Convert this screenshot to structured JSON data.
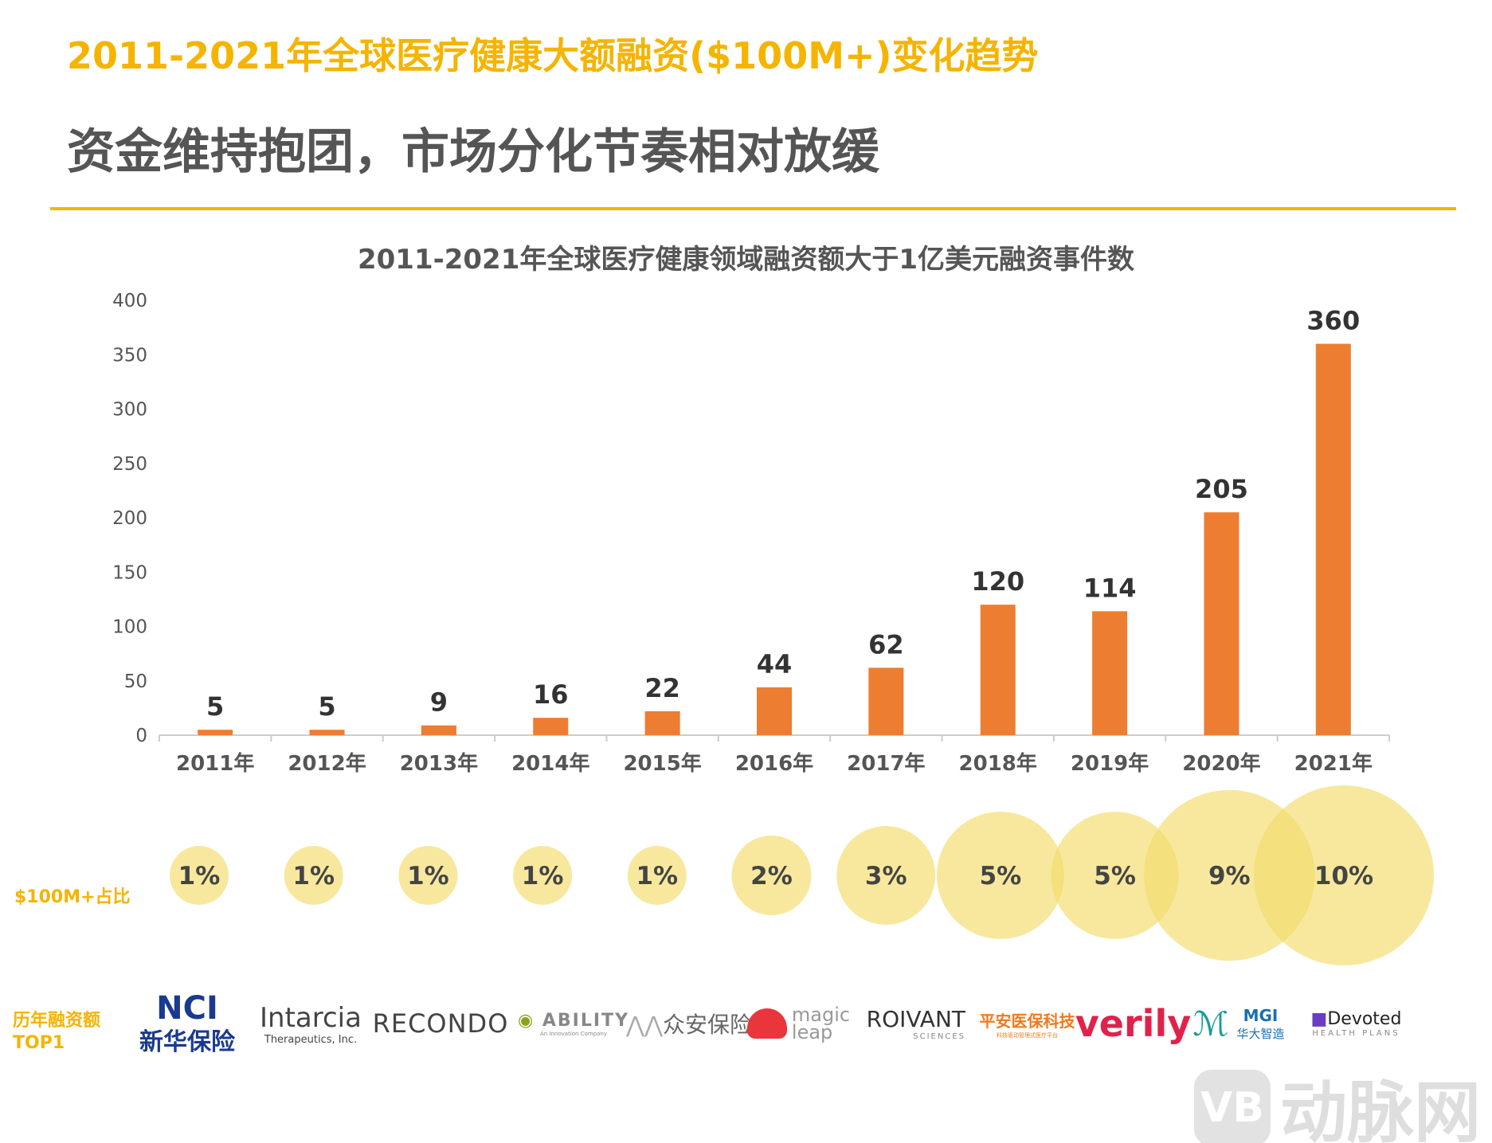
{
  "header": {
    "title": "2011-2021年全球医疗健康大额融资($100M+)变化趋势",
    "subtitle": "资金维持抱团，市场分化节奏相对放缓"
  },
  "chart_data": {
    "type": "bar",
    "title": "2011-2021年全球医疗健康领域融资额大于1亿美元融资事件数",
    "categories": [
      "2011年",
      "2012年",
      "2013年",
      "2014年",
      "2015年",
      "2016年",
      "2017年",
      "2018年",
      "2019年",
      "2020年",
      "2021年"
    ],
    "values": [
      5,
      5,
      9,
      16,
      22,
      44,
      62,
      120,
      114,
      205,
      360
    ],
    "ylim": [
      0,
      400
    ],
    "yticks": [
      0,
      50,
      100,
      150,
      200,
      250,
      300,
      350,
      400
    ],
    "grid": false,
    "bar_color": "#ed7d31",
    "ratio": {
      "label": "$100M+占比",
      "values": [
        "1%",
        "1%",
        "1%",
        "1%",
        "1%",
        "2%",
        "3%",
        "5%",
        "5%",
        "9%",
        "10%"
      ],
      "numeric": [
        1,
        1,
        1,
        1,
        1,
        2,
        3,
        5,
        5,
        9,
        10
      ],
      "color": "#f3dc6a"
    }
  },
  "top1": {
    "label_line1": "历年融资额",
    "label_line2": "TOP1",
    "logos": [
      {
        "name": "NCI",
        "sub": "新华保险"
      },
      {
        "name": "Intarcia",
        "sub": "Therapeutics, Inc."
      },
      {
        "name": "RECONDO",
        "sub": ""
      },
      {
        "name": "ABILITY",
        "sub": "An Innovation Company"
      },
      {
        "name": "众安保险",
        "sub": ""
      },
      {
        "name": "magic",
        "sub": "leap"
      },
      {
        "name": "ROIVANT",
        "sub": "SCIENCES"
      },
      {
        "name": "平安医保科技",
        "sub": "科技驱动管理式医疗平台"
      },
      {
        "name": "verily",
        "sub": ""
      },
      {
        "name": "MGI",
        "sub": "华大智造"
      },
      {
        "name": "Devoted",
        "sub": "HEALTH PLANS"
      }
    ]
  },
  "watermark": {
    "mark": "VB",
    "text": "动脉网"
  }
}
